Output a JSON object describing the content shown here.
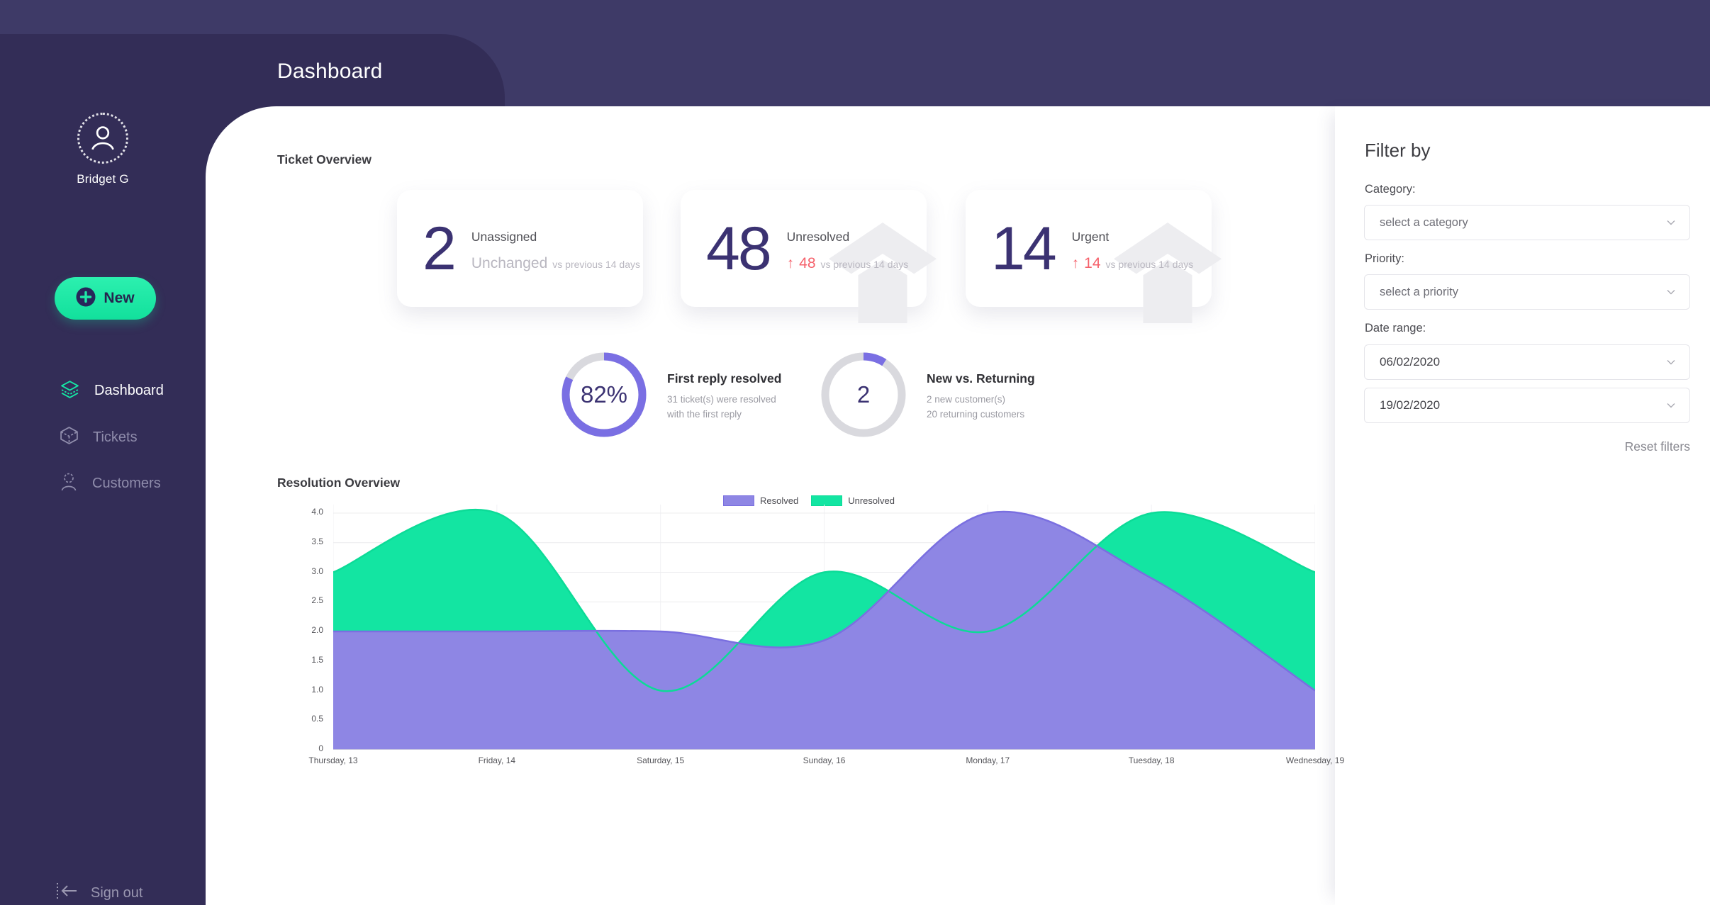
{
  "header": {
    "title": "Dashboard"
  },
  "sidebar": {
    "user_name": "Bridget G",
    "new_button_label": "New",
    "nav": [
      {
        "label": "Dashboard",
        "active": true
      },
      {
        "label": "Tickets",
        "active": false
      },
      {
        "label": "Customers",
        "active": false
      }
    ],
    "sign_out_label": "Sign out"
  },
  "ticket_overview": {
    "section_title": "Ticket Overview",
    "cards": [
      {
        "value": "2",
        "label": "Unassigned",
        "change_text": "Unchanged",
        "change_suffix": "vs previous 14 days",
        "trend": "flat"
      },
      {
        "value": "48",
        "label": "Unresolved",
        "change_text": "48",
        "change_suffix": "vs previous 14 days",
        "trend": "up"
      },
      {
        "value": "14",
        "label": "Urgent",
        "change_text": "14",
        "change_suffix": "vs previous 14 days",
        "trend": "up"
      }
    ],
    "stats": [
      {
        "center_label": "82%",
        "percent": 82,
        "title": "First reply resolved",
        "line1": "31 ticket(s) were resolved",
        "line2": "with the first reply"
      },
      {
        "center_label": "2",
        "percent": 9.1,
        "title": "New vs. Returning",
        "line1": "2 new customer(s)",
        "line2": "20 returning customers"
      }
    ]
  },
  "resolution_overview": {
    "section_title": "Resolution Overview"
  },
  "chart_data": {
    "type": "area",
    "categories": [
      "Thursday, 13",
      "Friday, 14",
      "Saturday, 15",
      "Sunday, 16",
      "Monday, 17",
      "Tuesday, 18",
      "Wednesday, 19"
    ],
    "series": [
      {
        "name": "Resolved",
        "values": [
          2.0,
          2.0,
          2.0,
          1.85,
          4.0,
          2.9,
          1.0
        ]
      },
      {
        "name": "Unresolved",
        "values": [
          3.0,
          4.0,
          1.0,
          3.0,
          2.0,
          4.0,
          3.0
        ]
      }
    ],
    "ylim": [
      0,
      4
    ],
    "y_tick_step": 0.5,
    "grid": true,
    "legend_position": "top"
  },
  "filter_panel": {
    "title": "Filter by",
    "category_label": "Category:",
    "category_value": "select a category",
    "priority_label": "Priority:",
    "priority_value": "select a priority",
    "date_range_label": "Date range:",
    "date_from": "06/02/2020",
    "date_to": "19/02/2020",
    "reset_label": "Reset filters"
  },
  "colors": {
    "accent_green": "#15e8a6",
    "resolved_fill": "#8e86e4",
    "resolved_stroke": "#7a6fe0",
    "unresolved_fill": "#13e5a2",
    "unresolved_stroke": "#0cdb97",
    "donut_purple": "#7a6fe3",
    "donut_gray": "#d9d9de",
    "alert_red": "#f5616b"
  }
}
